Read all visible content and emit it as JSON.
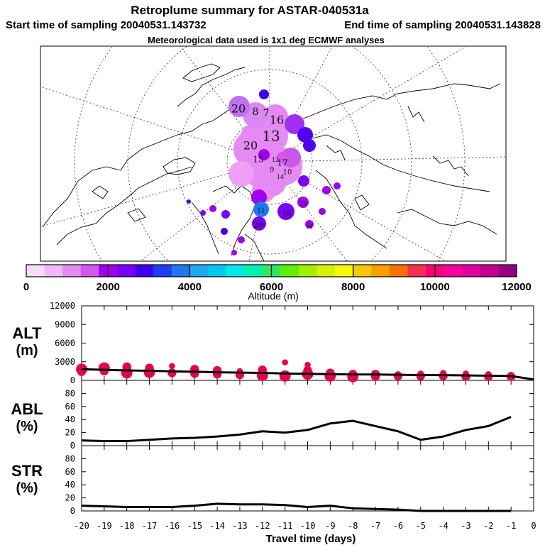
{
  "title": "Retroplume summary for ASTAR-040531a",
  "subtitle_start": "Start time of sampling 20040531.143732",
  "subtitle_end": "End time of sampling 20040531.143828",
  "subtitle_met": "Meteorological data used is 1x1 deg ECMWF analyses",
  "colors": {
    "colorbar": [
      "#f7dcf9",
      "#f0b8f7",
      "#e48af2",
      "#d257ea",
      "#a000f0",
      "#7a00f5",
      "#4000f0",
      "#1e3cf0",
      "#1e78f0",
      "#1ea8f0",
      "#00c8f0",
      "#00e8e8",
      "#00f0b0",
      "#30e860",
      "#60f000",
      "#a0f000",
      "#d8f000",
      "#f8f800",
      "#f8c800",
      "#f8a000",
      "#f87000",
      "#f83050",
      "#f80078",
      "#f800a0",
      "#e000a0",
      "#c00090",
      "#900080"
    ],
    "alt_point": "#e8004a",
    "line": "#000000"
  },
  "map": {
    "plume_labels": [
      "20",
      "8",
      "7",
      "16",
      "13",
      "20",
      "9",
      "15",
      "17",
      "10",
      "11",
      "18",
      "19",
      "16",
      "20",
      "12",
      "14"
    ]
  },
  "colorbar": {
    "ticks": [
      "0",
      "2000",
      "4000",
      "6000",
      "8000",
      "10000",
      "12000"
    ],
    "label": "Altitude (m)"
  },
  "panels": {
    "alt": {
      "label_top": "ALT",
      "label_bottom": "(m)",
      "yticks": [
        "12000",
        "9000",
        "6000",
        "3000",
        "0"
      ]
    },
    "abl": {
      "label_top": "ABL",
      "label_bottom": "(%)",
      "yticks": [
        "80",
        "60",
        "40",
        "20",
        "0"
      ]
    },
    "str": {
      "label_top": "STR",
      "label_bottom": "(%)",
      "yticks": [
        "80",
        "60",
        "40",
        "20",
        "0"
      ]
    }
  },
  "xaxis": {
    "ticks": [
      "-20",
      "-19",
      "-18",
      "-17",
      "-16",
      "-15",
      "-14",
      "-13",
      "-12",
      "-11",
      "-10",
      "-9",
      "-8",
      "-7",
      "-6",
      "-5",
      "-4",
      "-3",
      "-2",
      "-1",
      "0"
    ],
    "label": "Travel time (days)"
  },
  "chart_data": [
    {
      "type": "line",
      "name": "ALT",
      "ylabel": "ALT (m)",
      "ylim": [
        0,
        12000
      ],
      "x": [
        -20,
        -19,
        -18,
        -17,
        -16,
        -15,
        -14,
        -13,
        -12,
        -11,
        -10,
        -9,
        -8,
        -7,
        -6,
        -5,
        -4,
        -3,
        -2,
        -1,
        0
      ],
      "series": [
        {
          "name": "mean altitude",
          "values": [
            1800,
            1700,
            1600,
            1550,
            1450,
            1400,
            1300,
            1250,
            1200,
            1100,
            1050,
            1000,
            950,
            950,
            900,
            850,
            850,
            800,
            750,
            700,
            150
          ]
        }
      ],
      "scatter": {
        "x": [
          -20,
          -20,
          -19,
          -19,
          -18,
          -18,
          -18,
          -17,
          -17,
          -16,
          -16,
          -15,
          -15,
          -14,
          -14,
          -13,
          -13,
          -12,
          -12,
          -12,
          -11,
          -11,
          -10,
          -10,
          -10,
          -9,
          -9,
          -8,
          -8,
          -7,
          -7,
          -6,
          -6,
          -5,
          -5,
          -4,
          -4,
          -3,
          -3,
          -2,
          -2,
          -1,
          -1
        ],
        "y": [
          1800,
          1400,
          1500,
          2000,
          1200,
          1800,
          2200,
          1300,
          2000,
          1200,
          2300,
          1100,
          1800,
          1000,
          1600,
          900,
          1500,
          800,
          1300,
          1700,
          700,
          2900,
          1000,
          1600,
          2500,
          700,
          1200,
          600,
          1000,
          600,
          1000,
          700,
          1000,
          700,
          1100,
          700,
          1200,
          600,
          1100,
          600,
          1000,
          600,
          900
        ],
        "size": [
          3,
          2,
          2,
          3,
          3,
          2,
          2,
          3,
          2,
          2,
          1,
          2,
          2,
          2,
          2,
          2,
          1,
          3,
          2,
          2,
          3,
          1,
          3,
          2,
          1,
          3,
          2,
          3,
          2,
          2,
          2,
          2,
          1,
          2,
          1,
          2,
          1,
          2,
          1,
          2,
          1,
          2,
          1
        ]
      }
    },
    {
      "type": "line",
      "name": "ABL",
      "ylabel": "ABL (%)",
      "ylim": [
        0,
        100
      ],
      "x": [
        -20,
        -19,
        -18,
        -17,
        -16,
        -15,
        -14,
        -13,
        -12,
        -11,
        -10,
        -9,
        -8,
        -7,
        -6,
        -5,
        -4,
        -3,
        -2,
        -1
      ],
      "series": [
        {
          "name": "ABL fraction",
          "values": [
            8,
            7,
            7,
            9,
            11,
            12,
            14,
            17,
            22,
            20,
            24,
            34,
            38,
            30,
            22,
            9,
            14,
            24,
            30,
            44
          ]
        }
      ]
    },
    {
      "type": "line",
      "name": "STR",
      "ylabel": "STR (%)",
      "ylim": [
        0,
        100
      ],
      "x": [
        -20,
        -19,
        -18,
        -17,
        -16,
        -15,
        -14,
        -13,
        -12,
        -11,
        -10,
        -9,
        -8,
        -7,
        -6,
        -5,
        -4,
        -3,
        -2,
        -1
      ],
      "series": [
        {
          "name": "stratospheric fraction",
          "values": [
            8,
            7,
            6,
            6,
            6,
            8,
            11,
            10,
            10,
            9,
            6,
            8,
            4,
            3,
            2,
            0,
            0,
            0,
            0,
            0
          ]
        }
      ]
    }
  ]
}
